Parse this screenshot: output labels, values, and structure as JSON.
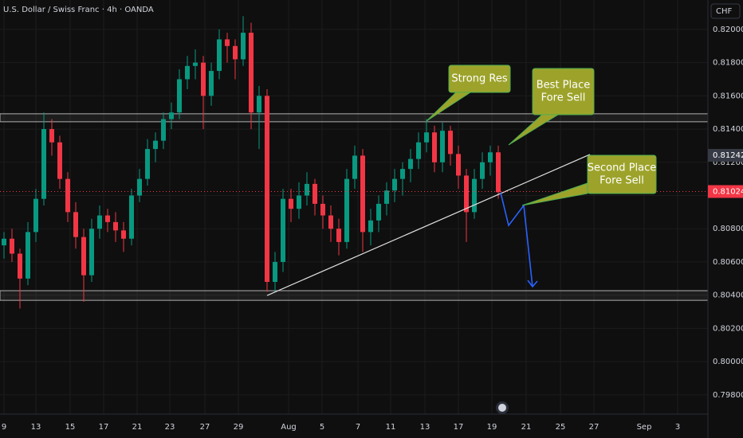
{
  "header": "U.S. Dollar / Swiss Franc · 4h · OANDA",
  "currency": "CHF",
  "chart_data": {
    "type": "candlestick",
    "x": [
      0,
      1,
      2,
      3,
      4,
      5,
      6,
      7,
      8,
      9,
      10,
      11,
      12,
      13,
      14,
      15,
      16,
      17,
      18,
      19,
      20,
      21,
      22,
      23,
      24,
      25,
      26,
      27,
      28,
      29,
      30,
      31,
      32,
      33,
      34,
      35,
      36,
      37,
      38,
      39,
      40,
      41,
      42,
      43,
      44,
      45,
      46,
      47,
      48,
      49,
      50,
      51,
      52,
      53,
      54,
      55,
      56,
      57,
      58,
      59,
      60,
      61,
      62
    ],
    "open": [
      0.807,
      0.8074,
      0.8065,
      0.805,
      0.8078,
      0.8098,
      0.814,
      0.8132,
      0.811,
      0.809,
      0.8075,
      0.8052,
      0.808,
      0.8088,
      0.8084,
      0.8079,
      0.8074,
      0.81,
      0.811,
      0.8128,
      0.8133,
      0.8146,
      0.815,
      0.817,
      0.8178,
      0.818,
      0.816,
      0.8175,
      0.8194,
      0.819,
      0.8182,
      0.8198,
      0.815,
      0.816,
      0.8048,
      0.806,
      0.8098,
      0.8092,
      0.81,
      0.8107,
      0.8095,
      0.8088,
      0.808,
      0.8072,
      0.811,
      0.8124,
      0.8078,
      0.8085,
      0.8095,
      0.8103,
      0.811,
      0.8116,
      0.8122,
      0.8132,
      0.8138,
      0.812,
      0.8139,
      0.8125,
      0.8112,
      0.809,
      0.811,
      0.812,
      0.8126
    ],
    "high": [
      0.8078,
      0.808,
      0.8068,
      0.8084,
      0.8104,
      0.815,
      0.8146,
      0.8136,
      0.8114,
      0.8096,
      0.808,
      0.8086,
      0.8094,
      0.8092,
      0.809,
      0.8084,
      0.8104,
      0.8116,
      0.8134,
      0.8138,
      0.815,
      0.8156,
      0.8176,
      0.8184,
      0.8188,
      0.8184,
      0.818,
      0.82,
      0.8198,
      0.8194,
      0.8208,
      0.8204,
      0.8166,
      0.8164,
      0.8066,
      0.8104,
      0.8104,
      0.8108,
      0.8114,
      0.811,
      0.81,
      0.8094,
      0.8086,
      0.8116,
      0.813,
      0.8128,
      0.8092,
      0.81,
      0.8108,
      0.8116,
      0.812,
      0.8128,
      0.8138,
      0.8146,
      0.8142,
      0.8144,
      0.8142,
      0.813,
      0.8116,
      0.8116,
      0.8126,
      0.813,
      0.813
    ],
    "low": [
      0.8062,
      0.806,
      0.8032,
      0.8046,
      0.8072,
      0.8094,
      0.8124,
      0.8104,
      0.8084,
      0.8068,
      0.8036,
      0.8048,
      0.8074,
      0.8078,
      0.8072,
      0.8066,
      0.807,
      0.8096,
      0.8106,
      0.812,
      0.8128,
      0.814,
      0.8146,
      0.8164,
      0.817,
      0.814,
      0.8154,
      0.817,
      0.818,
      0.817,
      0.8178,
      0.814,
      0.8128,
      0.8042,
      0.8042,
      0.8054,
      0.8084,
      0.8086,
      0.8094,
      0.8088,
      0.808,
      0.8072,
      0.8064,
      0.8068,
      0.8104,
      0.8066,
      0.807,
      0.8078,
      0.8088,
      0.8096,
      0.81,
      0.8108,
      0.8116,
      0.8126,
      0.8114,
      0.8114,
      0.8118,
      0.8104,
      0.8072,
      0.8086,
      0.8104,
      0.8112,
      0.8098
    ],
    "close": [
      0.8074,
      0.8065,
      0.805,
      0.8078,
      0.8098,
      0.814,
      0.8132,
      0.811,
      0.809,
      0.8075,
      0.8052,
      0.808,
      0.8088,
      0.8084,
      0.8079,
      0.8074,
      0.81,
      0.811,
      0.8128,
      0.8133,
      0.8146,
      0.815,
      0.817,
      0.8178,
      0.818,
      0.816,
      0.8175,
      0.8194,
      0.819,
      0.8182,
      0.8198,
      0.815,
      0.816,
      0.8048,
      0.806,
      0.8098,
      0.8092,
      0.81,
      0.8107,
      0.8095,
      0.8088,
      0.808,
      0.8072,
      0.811,
      0.8124,
      0.8078,
      0.8085,
      0.8095,
      0.8103,
      0.811,
      0.8116,
      0.8122,
      0.8132,
      0.8138,
      0.812,
      0.8139,
      0.8125,
      0.8112,
      0.809,
      0.811,
      0.812,
      0.8126,
      0.8102
    ],
    "up_color": "#089981",
    "down_color": "#f23645",
    "xlim": [
      -0.5,
      88.3
    ],
    "ylim": [
      0.79684,
      0.82177
    ],
    "xticks": [
      {
        "value": 0,
        "label": "9"
      },
      {
        "value": 4,
        "label": "13"
      },
      {
        "value": 8.3,
        "label": "15"
      },
      {
        "value": 12.5,
        "label": "17"
      },
      {
        "value": 16.7,
        "label": "21"
      },
      {
        "value": 20.8,
        "label": "23"
      },
      {
        "value": 25.2,
        "label": "27"
      },
      {
        "value": 29.4,
        "label": "29"
      },
      {
        "value": 35.7,
        "label": "Aug"
      },
      {
        "value": 39.9,
        "label": "5"
      },
      {
        "value": 44.4,
        "label": "7"
      },
      {
        "value": 48.5,
        "label": "11"
      },
      {
        "value": 52.8,
        "label": "13"
      },
      {
        "value": 57,
        "label": "17"
      },
      {
        "value": 61.2,
        "label": "19"
      },
      {
        "value": 65.5,
        "label": "21"
      },
      {
        "value": 69.8,
        "label": "25"
      },
      {
        "value": 74,
        "label": "27"
      },
      {
        "value": 80.3,
        "label": "Sep"
      },
      {
        "value": 84.5,
        "label": "3"
      }
    ],
    "yticks": [
      {
        "value": 0.798,
        "label": "0.79800"
      },
      {
        "value": 0.8,
        "label": "0.80000"
      },
      {
        "value": 0.802,
        "label": "0.80200"
      },
      {
        "value": 0.804,
        "label": "0.80400"
      },
      {
        "value": 0.806,
        "label": "0.80600"
      },
      {
        "value": 0.808,
        "label": "0.80800"
      },
      {
        "value": 0.81,
        "label": "0.81000"
      },
      {
        "value": 0.812,
        "label": "0.81200"
      },
      {
        "value": 0.814,
        "label": "0.81400"
      },
      {
        "value": 0.816,
        "label": "0.81600"
      },
      {
        "value": 0.818,
        "label": "0.81800"
      },
      {
        "value": 0.82,
        "label": "0.82000"
      }
    ],
    "grid": true,
    "price_labels": [
      {
        "value": 0.81242,
        "label": "0.81242",
        "color": "#363a45"
      },
      {
        "value": 0.81024,
        "label": "0.81024",
        "color": "#f23645"
      }
    ],
    "zones": [
      {
        "top": 0.81492,
        "bottom": 0.81444
      },
      {
        "top": 0.80427,
        "bottom": 0.80369
      }
    ],
    "trendline": {
      "x": [
        33,
        73.5
      ],
      "y": [
        0.80398,
        0.81247
      ]
    },
    "projection": {
      "x": [
        62.3,
        63.3,
        65.2,
        66.3
      ],
      "y": [
        0.81017,
        0.8082,
        0.8094,
        0.80451
      ],
      "color": "#2962ff"
    },
    "callouts": [
      [
        "Strong Res"
      ],
      [
        "Best Place",
        "Fore Sell"
      ],
      [
        "Second Place",
        "Fore Sell"
      ]
    ]
  }
}
